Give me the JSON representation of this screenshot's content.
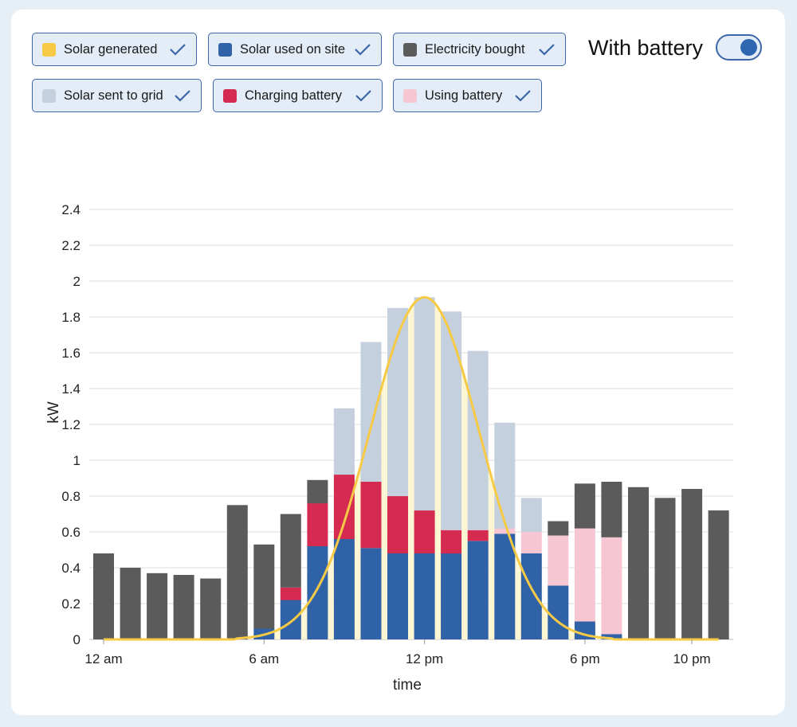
{
  "legend": {
    "items": [
      {
        "label": "Solar generated",
        "color": "#f6ca45"
      },
      {
        "label": "Solar used on site",
        "color": "#2f62a6"
      },
      {
        "label": "Electricity bought",
        "color": "#5b5b5b"
      },
      {
        "label": "Solar sent to grid",
        "color": "#c5d0de"
      },
      {
        "label": "Charging battery",
        "color": "#d62b50"
      },
      {
        "label": "Using battery",
        "color": "#f6c6d3"
      }
    ]
  },
  "battery_toggle": {
    "label": "With battery",
    "state": "on"
  },
  "chart_data": {
    "type": "bar",
    "stacked": true,
    "xlabel": "time",
    "ylabel": "kW",
    "ylim": [
      0,
      2.4
    ],
    "yticks": [
      "0",
      "0.2",
      "0.4",
      "0.6",
      "0.8",
      "1",
      "1.2",
      "1.4",
      "1.6",
      "1.8",
      "2",
      "2.2",
      "2.4"
    ],
    "ytick_values": [
      0,
      0.2,
      0.4,
      0.6,
      0.8,
      1.0,
      1.2,
      1.4,
      1.6,
      1.8,
      2.0,
      2.2,
      2.4
    ],
    "xticks": [
      {
        "label": "12 am",
        "hour": 0
      },
      {
        "label": "6 am",
        "hour": 6
      },
      {
        "label": "12 pm",
        "hour": 12
      },
      {
        "label": "6 pm",
        "hour": 18
      },
      {
        "label": "10 pm",
        "hour": 22
      }
    ],
    "hours": [
      0,
      1,
      2,
      3,
      4,
      5,
      6,
      7,
      8,
      9,
      10,
      11,
      12,
      13,
      14,
      15,
      16,
      17,
      18,
      19,
      20,
      21,
      22,
      23
    ],
    "series": [
      {
        "name": "Solar used on site",
        "color": "#2f62a6",
        "values": [
          0,
          0,
          0,
          0,
          0,
          0,
          0.06,
          0.22,
          0.52,
          0.56,
          0.51,
          0.48,
          0.48,
          0.48,
          0.55,
          0.59,
          0.48,
          0.3,
          0.1,
          0.03,
          0,
          0,
          0,
          0
        ]
      },
      {
        "name": "Charging battery",
        "color": "#d62b50",
        "values": [
          0,
          0,
          0,
          0,
          0,
          0,
          0,
          0.07,
          0.24,
          0.36,
          0.37,
          0.32,
          0.24,
          0.13,
          0.06,
          0,
          0,
          0,
          0,
          0,
          0,
          0,
          0,
          0
        ]
      },
      {
        "name": "Using battery",
        "color": "#f6c6d3",
        "values": [
          0,
          0,
          0,
          0,
          0,
          0,
          0,
          0,
          0,
          0,
          0,
          0,
          0,
          0,
          0,
          0.03,
          0.12,
          0.28,
          0.52,
          0.54,
          0,
          0,
          0,
          0
        ]
      },
      {
        "name": "Solar sent to grid",
        "color": "#c5d0de",
        "values": [
          0,
          0,
          0,
          0,
          0,
          0,
          0,
          0,
          0,
          0.37,
          0.78,
          1.05,
          1.19,
          1.22,
          1.0,
          0.59,
          0.19,
          0,
          0,
          0,
          0,
          0,
          0,
          0
        ]
      },
      {
        "name": "Electricity bought",
        "color": "#5b5b5b",
        "values": [
          0.48,
          0.4,
          0.37,
          0.36,
          0.34,
          0.75,
          0.47,
          0.41,
          0.13,
          0,
          0,
          0,
          0,
          0,
          0,
          0,
          0,
          0.08,
          0.25,
          0.31,
          0.85,
          0.79,
          0.84,
          0.72
        ]
      }
    ],
    "solar_generated": {
      "name": "Solar generated",
      "color": "#f6ca45",
      "peak_kw": 1.91,
      "peak_hour": 12.0,
      "spread_hours": 2.05
    }
  }
}
